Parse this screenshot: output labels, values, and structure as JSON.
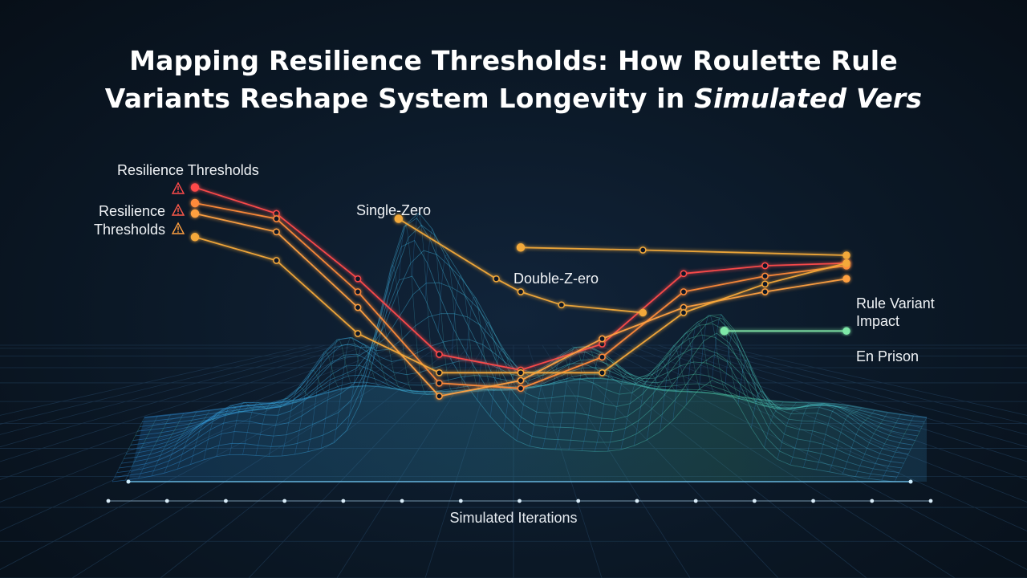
{
  "title": {
    "line1": "Mapping Resilience Thresholds: How Roulette Rule",
    "line2_prefix": "Variants Reshape System Longevity in ",
    "line2_emphasis": "Simulated Vers"
  },
  "colors": {
    "background": "#0b1826",
    "threshold_red": "#ff4a4a",
    "threshold_orange": "#ff9a3a",
    "rule_line_orange": "#f2a93a",
    "surface_blue": "#3fa9e8",
    "surface_green": "#5fe0a0",
    "en_prison_green": "#7fe8a8"
  },
  "chart_data": {
    "type": "area",
    "style": "3d-wireframe-surface",
    "xlabel": "Simulated Iterations",
    "ylabel": "",
    "grid": true,
    "x_ticks": 15,
    "annotations": {
      "threshold_top": "Resilience Thresholds",
      "threshold_side_1": "Resilience",
      "threshold_side_2": "Thresholds",
      "single_zero": "Single-Zero",
      "double_zero": "Double-Z-ero",
      "rule_variant_1": "Rule Variant",
      "rule_variant_2": "Impact",
      "en_prison": "En Prison",
      "warning_icon": "warning-triangle-icon"
    },
    "series": [
      {
        "color": "#ff4a4a",
        "x": [
          1,
          2,
          3,
          4,
          5,
          6,
          7,
          8,
          9
        ],
        "values": [
          9.0,
          8.0,
          5.5,
          2.6,
          2.0,
          3.0,
          5.7,
          6.0,
          6.1
        ]
      },
      {
        "color": "#ff8a3a",
        "x": [
          1,
          2,
          3,
          4,
          5,
          6,
          7,
          8,
          9
        ],
        "values": [
          8.4,
          7.8,
          5.0,
          1.5,
          1.3,
          2.5,
          5.0,
          5.6,
          6.0
        ]
      },
      {
        "color": "#ffa040",
        "x": [
          1,
          2,
          3,
          4,
          5,
          6,
          7,
          8,
          9
        ],
        "values": [
          8.0,
          7.3,
          4.4,
          1.0,
          1.6,
          3.2,
          4.4,
          5.0,
          5.5
        ]
      },
      {
        "color": "#f5a93a",
        "x": [
          1,
          2,
          3,
          4,
          5,
          6,
          7,
          8,
          9
        ],
        "values": [
          7.1,
          6.2,
          3.4,
          1.9,
          1.9,
          1.9,
          4.2,
          5.3,
          6.1
        ]
      },
      {
        "color": "#f2a93a",
        "x": [
          3.5,
          4.7,
          5.0,
          5.5,
          6.5
        ],
        "values": [
          7.8,
          5.5,
          5.0,
          4.5,
          4.2
        ]
      },
      {
        "color": "#f2a93a",
        "x": [
          5.0,
          6.5,
          9.0
        ],
        "values": [
          6.7,
          6.6,
          6.4
        ]
      },
      {
        "color": "#7fe8a8",
        "x": [
          7.5,
          9.0
        ],
        "values": [
          3.5,
          3.5
        ]
      }
    ]
  }
}
